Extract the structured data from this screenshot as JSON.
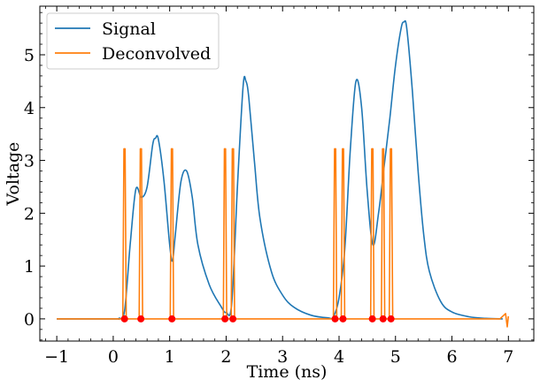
{
  "chart_data": {
    "type": "line",
    "title": "",
    "xlabel": "Time (ns)",
    "ylabel": "Voltage",
    "xlim": [
      -1.3,
      7.45
    ],
    "ylim": [
      -0.42,
      5.92
    ],
    "xticks": [
      -1,
      0,
      1,
      2,
      3,
      4,
      5,
      6,
      7
    ],
    "xtick_labels": [
      "−1",
      "0",
      "1",
      "2",
      "3",
      "4",
      "5",
      "6",
      "7"
    ],
    "yticks": [
      0,
      1,
      2,
      3,
      4,
      5
    ],
    "ytick_labels": [
      "0",
      "1",
      "2",
      "3",
      "4",
      "5"
    ],
    "grid": false,
    "legend_position": "top-left",
    "series": [
      {
        "name": "Signal",
        "color": "#1f77b4",
        "x": [
          -1.0,
          0.0,
          0.1,
          0.2,
          0.3,
          0.4,
          0.5,
          0.6,
          0.7,
          0.75,
          0.8,
          0.9,
          1.0,
          1.05,
          1.1,
          1.2,
          1.3,
          1.4,
          1.5,
          1.7,
          1.9,
          2.0,
          2.1,
          2.2,
          2.3,
          2.35,
          2.4,
          2.5,
          2.6,
          2.8,
          3.0,
          3.2,
          3.5,
          3.8,
          3.9,
          4.0,
          4.1,
          4.2,
          4.3,
          4.4,
          4.5,
          4.6,
          4.7,
          4.8,
          4.9,
          5.0,
          5.1,
          5.15,
          5.2,
          5.3,
          5.4,
          5.5,
          5.6,
          5.8,
          6.0,
          6.3,
          6.6,
          6.9
        ],
        "values": [
          0.0,
          0.0,
          0.01,
          0.15,
          1.4,
          2.45,
          2.3,
          2.5,
          3.3,
          3.42,
          3.4,
          2.6,
          1.4,
          1.1,
          1.6,
          2.6,
          2.8,
          2.3,
          1.4,
          0.65,
          0.25,
          0.12,
          0.3,
          2.5,
          4.4,
          4.5,
          4.2,
          3.0,
          1.9,
          0.9,
          0.45,
          0.22,
          0.07,
          0.02,
          0.04,
          0.4,
          1.3,
          3.2,
          4.5,
          4.0,
          2.4,
          1.4,
          2.0,
          2.9,
          3.8,
          4.8,
          5.5,
          5.62,
          5.5,
          4.3,
          2.8,
          1.6,
          0.9,
          0.33,
          0.13,
          0.04,
          0.01,
          0.0
        ]
      },
      {
        "name": "Deconvolved",
        "color": "#ff7f0e",
        "x": [
          -1.0,
          6.85,
          6.9,
          6.95,
          6.98,
          7.0
        ],
        "values": [
          0.0,
          0.0,
          0.05,
          0.1,
          -0.15,
          0.05
        ],
        "spikes": [
          0.2,
          0.49,
          1.04,
          1.98,
          2.12,
          3.93,
          4.07,
          4.59,
          4.78,
          4.92
        ],
        "spike_height": 3.22
      }
    ],
    "markers": {
      "color": "#ff0000",
      "x": [
        0.2,
        0.49,
        1.04,
        1.98,
        2.12,
        3.93,
        4.07,
        4.59,
        4.78,
        4.92
      ],
      "y": [
        0,
        0,
        0,
        0,
        0,
        0,
        0,
        0,
        0,
        0
      ]
    }
  }
}
